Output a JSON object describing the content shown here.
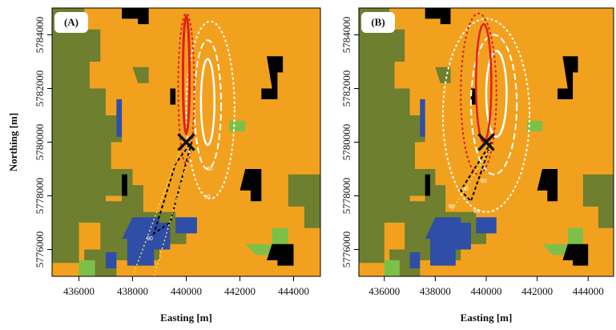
{
  "chart_data": [
    {
      "type": "map",
      "title": "(A)",
      "xlabel": "Easting [m]",
      "ylabel": "Northing [m]",
      "xlim": [
        435000,
        445000
      ],
      "ylim": [
        5775000,
        5785000
      ],
      "xticks": [
        436000,
        438000,
        440000,
        442000,
        444000
      ],
      "yticks": [
        5776000,
        5778000,
        5780000,
        5782000,
        5784000
      ],
      "annotations": [
        "60",
        "90",
        "90"
      ]
    },
    {
      "type": "map",
      "title": "(B)",
      "xlabel": "Easting [m]",
      "xlim": [
        435000,
        445000
      ],
      "ylim": [
        5775000,
        5785000
      ],
      "xticks": [
        436000,
        438000,
        440000,
        442000,
        444000
      ],
      "yticks": [
        5776000,
        5778000,
        5780000,
        5782000,
        5784000
      ],
      "annotations": [
        "60",
        "90",
        "90",
        "90"
      ]
    }
  ]
}
